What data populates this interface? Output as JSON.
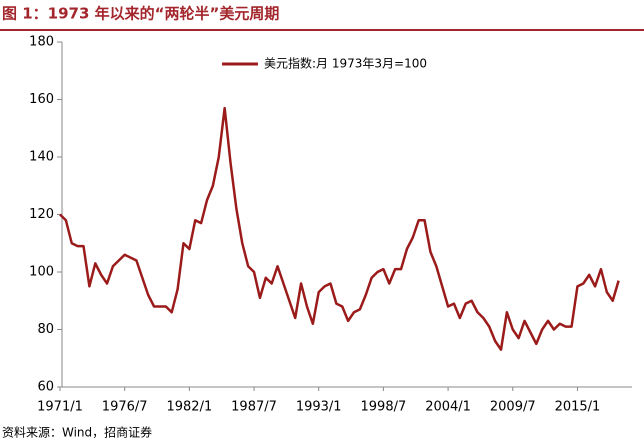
{
  "chart_data": {
    "type": "line",
    "title": "图 1：1973 年以来的“两轮半”美元周期",
    "source": "资料来源：Wind，招商证券",
    "x": [
      "1971/1",
      "1971/7",
      "1972/1",
      "1972/7",
      "1973/1",
      "1973/7",
      "1974/1",
      "1974/7",
      "1975/1",
      "1975/7",
      "1976/1",
      "1976/7",
      "1977/1",
      "1977/7",
      "1978/1",
      "1978/7",
      "1979/1",
      "1979/7",
      "1980/1",
      "1980/7",
      "1981/1",
      "1981/7",
      "1982/1",
      "1982/7",
      "1983/1",
      "1983/7",
      "1984/1",
      "1984/7",
      "1985/1",
      "1985/7",
      "1986/1",
      "1986/7",
      "1987/1",
      "1987/7",
      "1988/1",
      "1988/7",
      "1989/1",
      "1989/7",
      "1990/1",
      "1990/7",
      "1991/1",
      "1991/7",
      "1992/1",
      "1992/7",
      "1993/1",
      "1993/7",
      "1994/1",
      "1994/7",
      "1995/1",
      "1995/7",
      "1996/1",
      "1996/7",
      "1997/1",
      "1997/7",
      "1998/1",
      "1998/7",
      "1999/1",
      "1999/7",
      "2000/1",
      "2000/7",
      "2001/1",
      "2001/7",
      "2002/1",
      "2002/7",
      "2003/1",
      "2003/7",
      "2004/1",
      "2004/7",
      "2005/1",
      "2005/7",
      "2006/1",
      "2006/7",
      "2007/1",
      "2007/7",
      "2008/1",
      "2008/7",
      "2009/1",
      "2009/7",
      "2010/1",
      "2010/7",
      "2011/1",
      "2011/7",
      "2012/1",
      "2012/7",
      "2013/1",
      "2013/7",
      "2014/1",
      "2014/7",
      "2015/1",
      "2015/7",
      "2016/1",
      "2016/7",
      "2017/1",
      "2017/7",
      "2018/1",
      "2018/7"
    ],
    "series": [
      {
        "name": "美元指数:月  1973年3月=100",
        "color": "#9b1b1b",
        "values": [
          120,
          118,
          110,
          109,
          109,
          95,
          103,
          99,
          96,
          102,
          104,
          106,
          105,
          104,
          98,
          92,
          88,
          88,
          88,
          86,
          94,
          110,
          108,
          118,
          117,
          125,
          130,
          140,
          157,
          138,
          122,
          110,
          102,
          100,
          91,
          98,
          96,
          102,
          96,
          90,
          84,
          96,
          88,
          82,
          93,
          95,
          96,
          89,
          88,
          83,
          86,
          87,
          92,
          98,
          100,
          101,
          96,
          101,
          101,
          108,
          112,
          118,
          118,
          107,
          102,
          95,
          88,
          89,
          84,
          89,
          90,
          86,
          84,
          81,
          76,
          73,
          86,
          80,
          77,
          83,
          79,
          75,
          80,
          83,
          80,
          82,
          81,
          81,
          95,
          96,
          99,
          95,
          101,
          93,
          90,
          97
        ]
      }
    ],
    "xticks": [
      "1971/1",
      "1976/7",
      "1982/1",
      "1987/7",
      "1993/1",
      "1998/7",
      "2004/1",
      "2009/7",
      "2015/1"
    ],
    "ylim": [
      60,
      180
    ],
    "yticks": [
      60,
      80,
      100,
      120,
      140,
      160,
      180
    ],
    "grid": false,
    "legend": "top"
  }
}
